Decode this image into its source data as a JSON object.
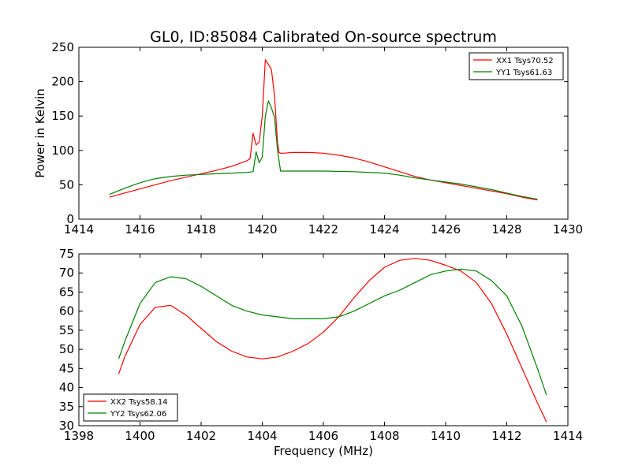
{
  "chart_data": [
    {
      "type": "line",
      "title": "GL0, ID:85084 Calibrated On-source spectrum",
      "xlabel": "",
      "ylabel": "Power in Kelvin",
      "xlim": [
        1414,
        1430
      ],
      "ylim": [
        0,
        250
      ],
      "xticks": [
        "1414",
        "1416",
        "1418",
        "1420",
        "1422",
        "1424",
        "1426",
        "1428",
        "1430"
      ],
      "yticks": [
        "0",
        "50",
        "100",
        "150",
        "200",
        "250"
      ],
      "legend_position": "upper right",
      "grid": false,
      "series": [
        {
          "name": "XX1 Tsys70.52",
          "color": "#ff0000",
          "x": [
            1415,
            1416,
            1417,
            1418,
            1418.5,
            1419,
            1419.5,
            1419.6,
            1419.7,
            1419.8,
            1419.9,
            1420,
            1420.1,
            1420.2,
            1420.3,
            1420.4,
            1420.5,
            1420.55,
            1420.6,
            1420.7,
            1421,
            1421.5,
            1422,
            1422.5,
            1423,
            1423.5,
            1424,
            1424.5,
            1425,
            1425.5,
            1426,
            1426.5,
            1427,
            1427.5,
            1428,
            1428.5,
            1429
          ],
          "values": [
            32,
            44,
            56,
            66,
            71,
            77,
            85,
            88,
            125,
            108,
            112,
            150,
            232,
            225,
            218,
            180,
            110,
            97,
            96,
            96,
            97,
            97,
            96,
            93,
            89,
            83,
            76,
            69,
            62,
            57,
            53,
            49,
            45,
            41,
            37,
            32,
            28
          ]
        },
        {
          "name": "YY1 Tsys61.63",
          "color": "#008000",
          "x": [
            1415,
            1415.5,
            1416,
            1416.5,
            1417,
            1417.5,
            1418,
            1418.5,
            1419,
            1419.5,
            1419.7,
            1419.8,
            1419.9,
            1420,
            1420.1,
            1420.2,
            1420.3,
            1420.4,
            1420.5,
            1420.6,
            1420.7,
            1421,
            1422,
            1423,
            1424,
            1424.5,
            1425,
            1425.5,
            1426,
            1426.5,
            1427,
            1427.5,
            1428,
            1428.5,
            1429
          ],
          "values": [
            36,
            45,
            53,
            59,
            62,
            64,
            65,
            66,
            67,
            68,
            69,
            98,
            82,
            90,
            150,
            172,
            162,
            148,
            100,
            70,
            70,
            70,
            70,
            69,
            67,
            64,
            60,
            57,
            54,
            51,
            47,
            43,
            38,
            33,
            29
          ]
        }
      ]
    },
    {
      "type": "line",
      "title": "",
      "xlabel": "Frequency (MHz)",
      "ylabel": "",
      "xlim": [
        1398,
        1414
      ],
      "ylim": [
        30,
        75
      ],
      "xticks": [
        "1398",
        "1400",
        "1402",
        "1404",
        "1406",
        "1408",
        "1410",
        "1412",
        "1414"
      ],
      "yticks": [
        "30",
        "35",
        "40",
        "45",
        "50",
        "55",
        "60",
        "65",
        "70",
        "75"
      ],
      "legend_position": "lower left",
      "grid": false,
      "series": [
        {
          "name": "XX2 Tsys58.14",
          "color": "#ff0000",
          "x": [
            1399.3,
            1399.5,
            1400,
            1400.5,
            1401,
            1401.5,
            1402,
            1402.5,
            1403,
            1403.5,
            1404,
            1404.5,
            1405,
            1405.5,
            1406,
            1406.5,
            1407,
            1407.5,
            1408,
            1408.5,
            1409,
            1409.5,
            1410,
            1410.5,
            1411,
            1411.5,
            1412,
            1412.5,
            1413,
            1413.3
          ],
          "values": [
            43.5,
            48,
            56.5,
            61,
            61.5,
            59,
            55.5,
            52,
            49.5,
            48,
            47.5,
            48,
            49.5,
            51.5,
            54.5,
            58.5,
            63.5,
            68,
            71.5,
            73.3,
            73.8,
            73.3,
            72,
            70.5,
            67.5,
            62,
            54,
            45,
            36,
            31
          ]
        },
        {
          "name": "YY2 Tsys62.06",
          "color": "#008000",
          "x": [
            1399.3,
            1399.5,
            1400,
            1400.5,
            1401,
            1401.5,
            1402,
            1402.5,
            1403,
            1403.5,
            1404,
            1404.5,
            1405,
            1405.5,
            1406,
            1406.5,
            1407,
            1407.5,
            1408,
            1408.5,
            1409,
            1409.5,
            1410,
            1410.5,
            1411,
            1411.5,
            1412,
            1412.5,
            1413,
            1413.3
          ],
          "values": [
            47.5,
            52,
            62,
            67.5,
            69,
            68.5,
            66.5,
            64,
            61.5,
            60,
            59,
            58.5,
            58,
            58,
            58,
            58.5,
            60,
            62,
            64,
            65.5,
            67.5,
            69.5,
            70.5,
            71,
            70.5,
            68,
            64,
            56,
            45,
            38
          ]
        }
      ]
    }
  ]
}
